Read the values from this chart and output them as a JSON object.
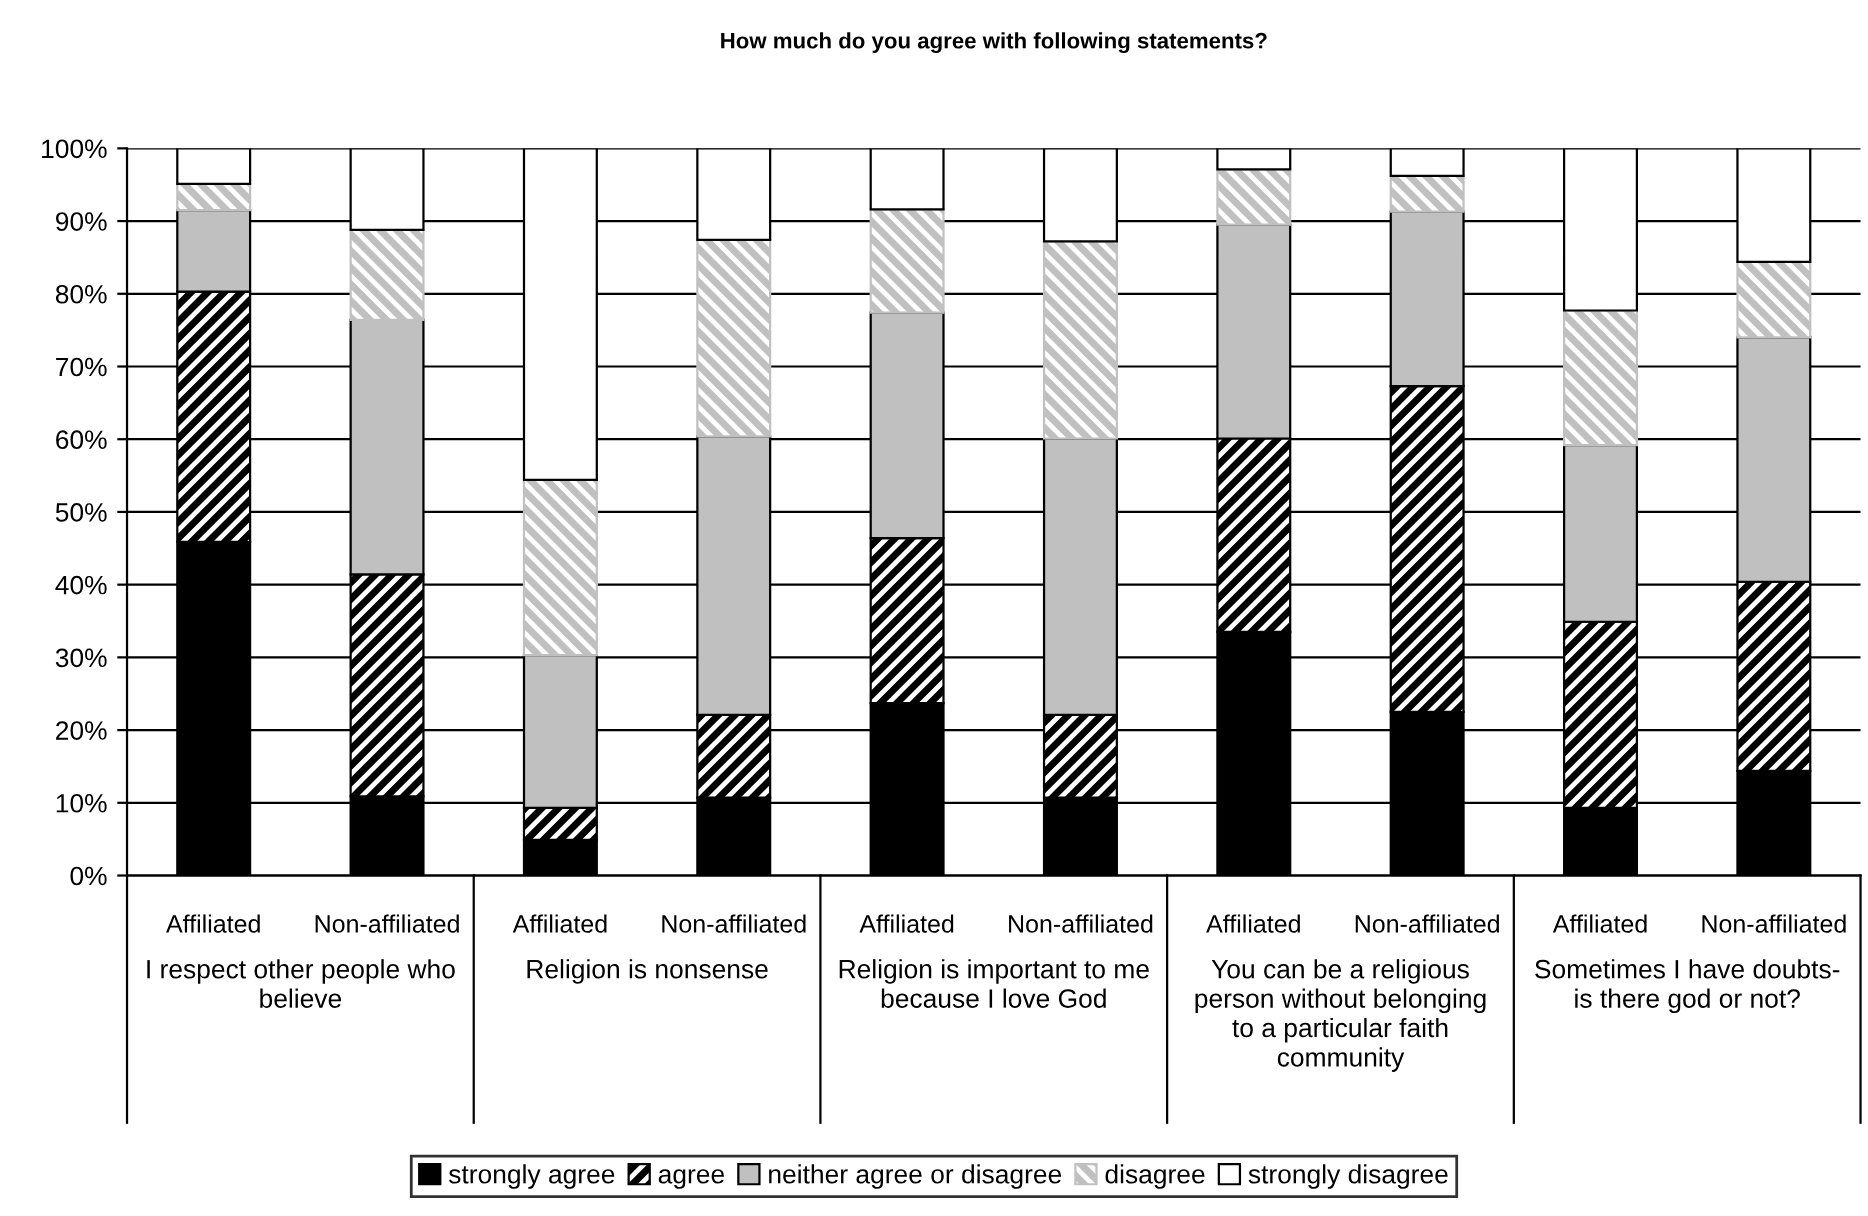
{
  "chart_data": {
    "type": "bar",
    "stacked": true,
    "title": "How much do you agree with following statements?",
    "categories": [
      "Affiliated",
      "Non-affiliated",
      "Affiliated",
      "Non-affiliated",
      "Affiliated",
      "Non-affiliated",
      "Affiliated",
      "Non-affiliated",
      "Affiliated",
      "Non-affiliated"
    ],
    "annotations": [
      "I respect other people who believe",
      "Religion is nonsense",
      "Religion is important to me because I love God",
      "You can be a religious person without belonging to a particular faith community",
      "Sometimes I have doubts- is there god or not?"
    ],
    "series": [
      {
        "name": "strongly agree",
        "color": "#000000",
        "values": [
          45.9,
          10.9,
          4.9,
          10.7,
          23.7,
          10.7,
          33.5,
          22.5,
          9.3,
          14.4
        ]
      },
      {
        "name": "agree",
        "color": "#000000",
        "values": [
          34.4,
          30.5,
          4.4,
          11.4,
          22.7,
          11.4,
          26.6,
          44.8,
          25.6,
          26.0
        ]
      },
      {
        "name": "neither agree or disagree",
        "color": "#c0c0c0",
        "values": [
          11.2,
          35.0,
          21.0,
          38.3,
          31.0,
          38.0,
          29.4,
          24.0,
          24.3,
          33.6
        ]
      },
      {
        "name": "disagree",
        "color": "#c0c0c0",
        "values": [
          3.6,
          12.4,
          24.1,
          27.0,
          14.2,
          27.1,
          7.6,
          4.9,
          18.5,
          10.4
        ]
      },
      {
        "name": "strongly disagree",
        "color": "#ffffff",
        "values": [
          4.9,
          11.2,
          45.6,
          12.6,
          8.4,
          12.8,
          2.9,
          3.8,
          22.3,
          15.6
        ]
      }
    ],
    "ylim": [
      0,
      100
    ],
    "yticks": [
      {
        "value": 0,
        "label": "0%"
      },
      {
        "value": 10,
        "label": "10%"
      },
      {
        "value": 20,
        "label": "20%"
      },
      {
        "value": 30,
        "label": "30%"
      },
      {
        "value": 40,
        "label": "40%"
      },
      {
        "value": 50,
        "label": "50%"
      },
      {
        "value": 60,
        "label": "60%"
      },
      {
        "value": 70,
        "label": "70%"
      },
      {
        "value": 80,
        "label": "80%"
      },
      {
        "value": 90,
        "label": "90%"
      },
      {
        "value": 100,
        "label": "100%"
      }
    ],
    "grid": "y",
    "legend": "bottom"
  }
}
